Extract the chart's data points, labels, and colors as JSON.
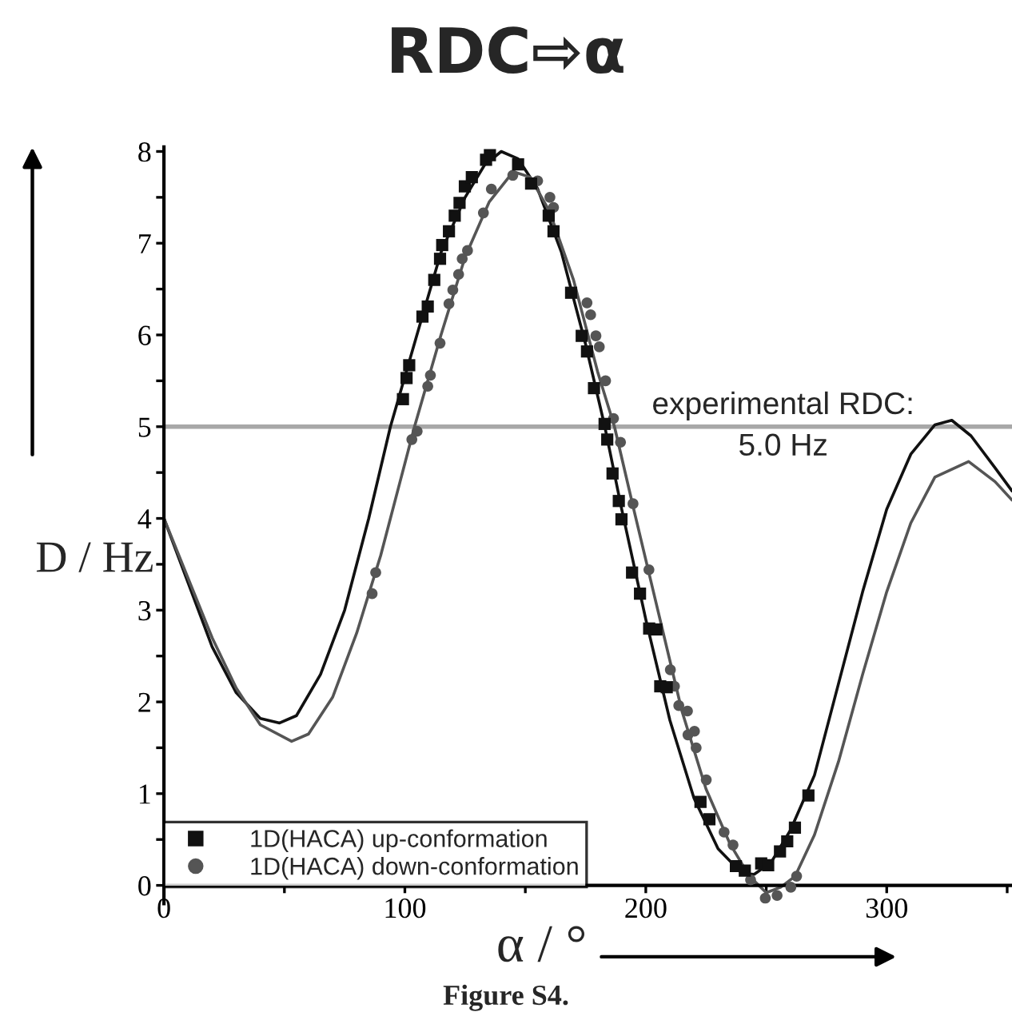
{
  "chart_data": {
    "type": "line",
    "title": "RDC⇨α",
    "xlabel": "α / °",
    "ylabel": "D / Hz",
    "xlim": [
      0,
      352
    ],
    "ylim": [
      -0.2,
      8.05
    ],
    "xticks": [
      0,
      {
        "value": 50,
        "label": null
      },
      100,
      {
        "value": 150,
        "label": null
      },
      200,
      {
        "value": 250,
        "label": null
      },
      300,
      {
        "value": 350,
        "label": null
      }
    ],
    "yticks": [
      0,
      {
        "value": 0.5,
        "label": null
      },
      1,
      {
        "value": 1.5,
        "label": null
      },
      2,
      {
        "value": 2.5,
        "label": null
      },
      3,
      {
        "value": 3.5,
        "label": null
      },
      4,
      {
        "value": 4.5,
        "label": null
      },
      5,
      {
        "value": 5.5,
        "label": null
      },
      6,
      {
        "value": 6.5,
        "label": null
      },
      7,
      {
        "value": 7.5,
        "label": null
      },
      8
    ],
    "grid": false,
    "legend": "bottom left",
    "ref_lines": [
      {
        "axis": "y",
        "value": 5.0,
        "label": "experimental RDC:\n5.0 Hz",
        "color": "#a8a8a8"
      }
    ],
    "annotations": [
      "Figure S4."
    ],
    "series": [
      {
        "color": "#111111",
        "x": [
          0,
          10,
          20,
          30,
          40,
          48,
          55,
          65,
          75,
          85,
          94,
          105,
          115,
          125,
          133,
          140,
          147,
          155,
          165,
          175,
          183,
          190,
          200,
          210,
          220,
          230,
          240,
          245,
          252,
          260,
          270,
          280,
          290,
          300,
          310,
          320,
          327,
          335,
          345,
          352
        ],
        "values": [
          4.0,
          3.3,
          2.6,
          2.1,
          1.82,
          1.77,
          1.85,
          2.3,
          3.0,
          4.0,
          5.0,
          6.0,
          6.9,
          7.5,
          7.85,
          8.0,
          7.92,
          7.6,
          6.9,
          5.9,
          5.0,
          4.1,
          2.9,
          1.8,
          0.95,
          0.4,
          0.13,
          0.12,
          0.25,
          0.6,
          1.2,
          2.2,
          3.2,
          4.1,
          4.7,
          5.02,
          5.07,
          4.9,
          4.55,
          4.3
        ]
      },
      {
        "color": "#555555",
        "x": [
          0,
          10,
          20,
          30,
          40,
          53,
          60,
          70,
          80,
          90,
          98,
          104,
          115,
          125,
          135,
          145,
          152,
          160,
          170,
          180,
          187,
          195,
          205,
          215,
          225,
          235,
          243,
          250,
          256,
          262,
          270,
          280,
          290,
          300,
          310,
          320,
          334,
          345,
          352
        ],
        "values": [
          4.0,
          3.35,
          2.7,
          2.15,
          1.75,
          1.57,
          1.65,
          2.05,
          2.75,
          3.6,
          4.4,
          5.0,
          6.0,
          6.85,
          7.45,
          7.78,
          7.72,
          7.35,
          6.6,
          5.6,
          5.0,
          4.1,
          3.0,
          1.9,
          1.05,
          0.45,
          0.1,
          -0.08,
          -0.02,
          0.1,
          0.55,
          1.35,
          2.3,
          3.2,
          3.95,
          4.45,
          4.62,
          4.4,
          4.2
        ]
      },
      {
        "type": "scatter",
        "name": "1D(HACA) up-conformation",
        "color": "#111111",
        "marker": "square",
        "x": [
          99.2,
          100.7,
          101.8,
          107.3,
          109.5,
          112.2,
          114.6,
          115.5,
          118.3,
          120.7,
          122.7,
          124.9,
          127.8,
          133.7,
          135.3,
          147,
          152.4,
          159.7,
          161.7,
          169,
          173.4,
          175.6,
          178.5,
          182.9,
          184,
          186.2,
          188.8,
          189.9,
          194.3,
          197.6,
          201.4,
          204.4,
          206,
          208.7,
          222.7,
          226.4,
          237.4,
          241.1,
          247.9,
          250.8,
          255.7,
          258.7,
          261.9,
          267.5
        ],
        "values": [
          5.3,
          5.53,
          5.67,
          6.2,
          6.31,
          6.6,
          6.83,
          6.98,
          7.13,
          7.3,
          7.44,
          7.62,
          7.72,
          7.91,
          7.96,
          7.86,
          7.65,
          7.3,
          7.13,
          6.46,
          5.99,
          5.82,
          5.42,
          5.03,
          4.86,
          4.49,
          4.19,
          3.99,
          3.41,
          3.18,
          2.8,
          2.79,
          2.17,
          2.16,
          0.91,
          0.72,
          0.21,
          0.16,
          0.24,
          0.22,
          0.37,
          0.48,
          0.63,
          0.98
        ]
      },
      {
        "type": "scatter",
        "name": "1D(HACA) down-conformation",
        "color": "#555555",
        "marker": "circle",
        "x": [
          86.4,
          87.9,
          102.9,
          105.1,
          109.5,
          110.6,
          114.6,
          118.3,
          119.9,
          122.3,
          123.8,
          126,
          132.6,
          135.9,
          144.8,
          155.1,
          160.2,
          161.7,
          175.6,
          177.1,
          179.3,
          180.7,
          183.3,
          186.6,
          189.5,
          194.7,
          201.3,
          210.2,
          211.9,
          213.7,
          217.3,
          217.5,
          220.2,
          220.9,
          225.1,
          232.5,
          236.2,
          239.8,
          243.5,
          249.6,
          254.5,
          260.2,
          262.6
        ],
        "values": [
          3.18,
          3.41,
          4.86,
          4.95,
          5.44,
          5.56,
          5.91,
          6.34,
          6.49,
          6.66,
          6.83,
          6.92,
          7.33,
          7.59,
          7.74,
          7.68,
          7.5,
          7.39,
          6.35,
          6.22,
          5.99,
          5.87,
          5.5,
          5.09,
          4.83,
          4.16,
          3.44,
          2.35,
          2.17,
          1.96,
          1.9,
          1.64,
          1.68,
          1.5,
          1.15,
          0.58,
          0.44,
          null,
          0.06,
          -0.14,
          -0.11,
          -0.02,
          0.1
        ]
      }
    ]
  }
}
